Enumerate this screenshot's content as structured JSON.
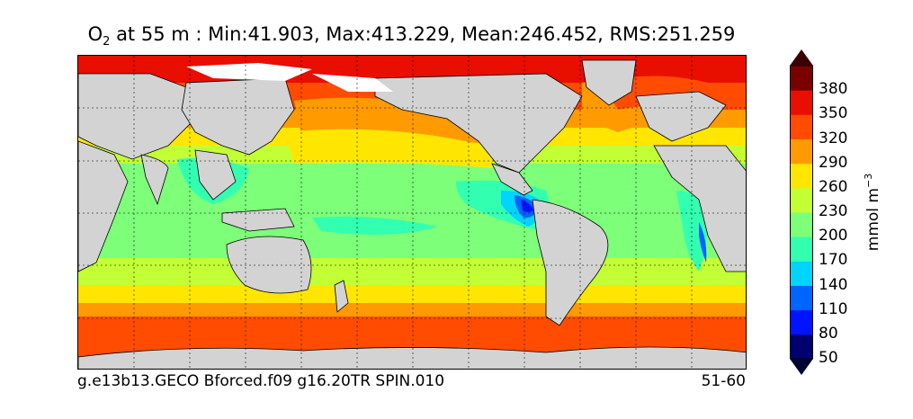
{
  "title": {
    "prefix": "O",
    "subscript": "2",
    "rest": " at 55 m : Min:41.903, Max:413.229, Mean:246.452, RMS:251.259"
  },
  "footer": {
    "case_name": "g.e13b13.GECO Bforced.f09 g16.20TR SPIN.010",
    "years": "51-60"
  },
  "colorbar": {
    "title_base": "mmol m",
    "title_exponent": "−3",
    "tick_labels": [
      "380",
      "350",
      "320",
      "290",
      "260",
      "230",
      "200",
      "170",
      "140",
      "110",
      "80",
      "50"
    ],
    "colors": [
      "#00006e",
      "#0014ff",
      "#0064ff",
      "#00d4ff",
      "#33ffb0",
      "#7dff7a",
      "#c2ff34",
      "#ffe600",
      "#ff9a00",
      "#ff4c00",
      "#e80e00",
      "#7a0000"
    ]
  },
  "map_colors": {
    "land": "#d3d3d3",
    "sea_ice": "#ffffff",
    "grid": "#000000"
  }
}
